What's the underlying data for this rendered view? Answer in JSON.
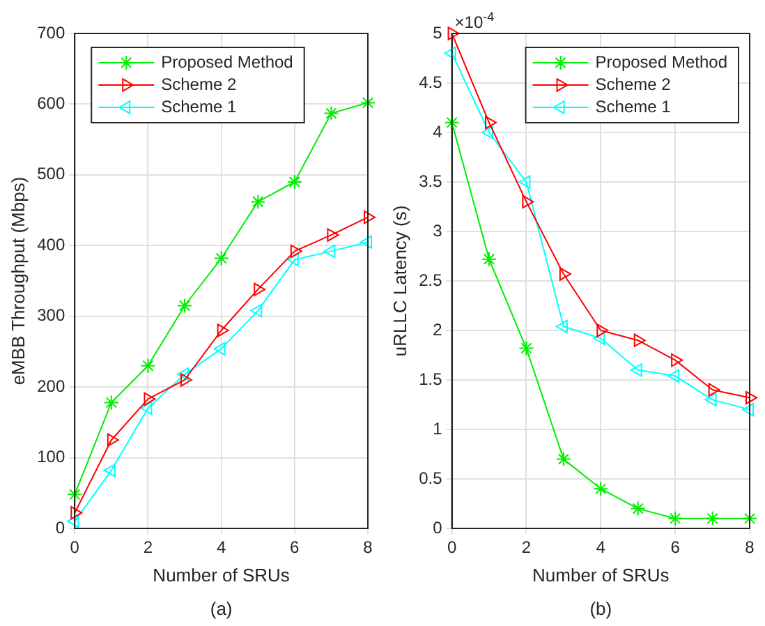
{
  "chart_data": [
    {
      "type": "line",
      "xlabel": "Number of SRUs",
      "ylabel": "eMBB Throughput (Mbps)",
      "annotations": [
        "(a)"
      ],
      "x": [
        0,
        1,
        2,
        3,
        4,
        5,
        6,
        7,
        8
      ],
      "xlim": [
        0,
        8
      ],
      "xticks": [
        0,
        2,
        4,
        6,
        8
      ],
      "ylim": [
        0,
        700
      ],
      "yticks": [
        0,
        100,
        200,
        300,
        400,
        500,
        600,
        700
      ],
      "grid": true,
      "legend": "top left",
      "series": [
        {
          "name": "Proposed Method",
          "color": "#00ee00",
          "marker": "cross",
          "values": [
            48,
            178,
            230,
            315,
            382,
            462,
            490,
            587,
            602
          ]
        },
        {
          "name": "Scheme 2",
          "color": "#ff0000",
          "marker": "triangle-right",
          "values": [
            22,
            125,
            183,
            210,
            280,
            338,
            392,
            415,
            440
          ]
        },
        {
          "name": "Scheme 1",
          "color": "#00ffff",
          "marker": "triangle-left",
          "values": [
            10,
            82,
            170,
            218,
            254,
            308,
            380,
            392,
            405
          ]
        }
      ]
    },
    {
      "type": "line",
      "xlabel": "Number of SRUs",
      "ylabel": "uRLLC Latency (s)",
      "annotations": [
        "×10$^{-4}$",
        "(b)"
      ],
      "x": [
        0,
        1,
        2,
        3,
        4,
        5,
        6,
        7,
        8
      ],
      "xlim": [
        0,
        8
      ],
      "xticks": [
        0,
        2,
        4,
        6,
        8
      ],
      "ylim": [
        0,
        5
      ],
      "yticks": [
        0,
        0.5,
        1,
        1.5,
        2,
        2.5,
        3,
        3.5,
        4,
        4.5,
        5
      ],
      "grid": true,
      "legend": "top right",
      "series": [
        {
          "name": "Proposed Method",
          "color": "#00ee00",
          "marker": "cross",
          "values": [
            4.1,
            2.72,
            1.82,
            0.7,
            0.4,
            0.2,
            0.1,
            0.1,
            0.1
          ]
        },
        {
          "name": "Scheme 2",
          "color": "#ff0000",
          "marker": "triangle-right",
          "values": [
            5.0,
            4.1,
            3.3,
            2.57,
            2.0,
            1.9,
            1.7,
            1.4,
            1.32
          ]
        },
        {
          "name": "Scheme 1",
          "color": "#00ffff",
          "marker": "triangle-left",
          "values": [
            4.8,
            4.0,
            3.5,
            2.04,
            1.92,
            1.6,
            1.54,
            1.3,
            1.2
          ]
        }
      ]
    }
  ]
}
